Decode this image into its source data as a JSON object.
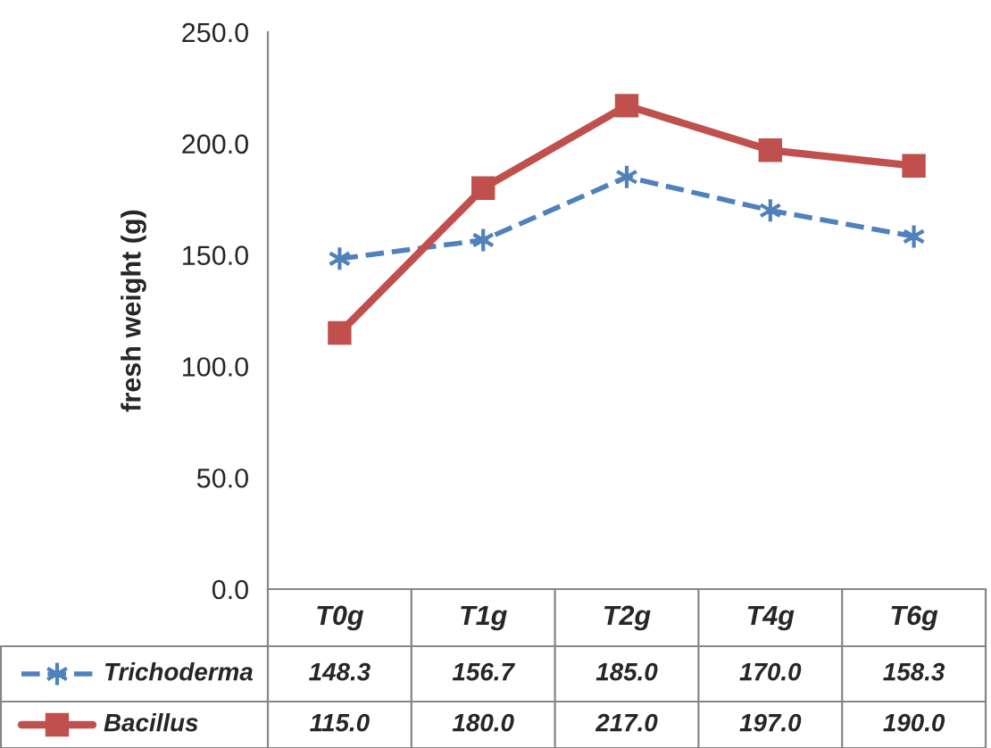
{
  "chart_data": {
    "type": "line",
    "ylabel": "fresh weight (g)",
    "categories": [
      "T0g",
      "T1g",
      "T2g",
      "T4g",
      "T6g"
    ],
    "series": [
      {
        "name": "Trichoderma",
        "color": "#4f81bd",
        "line_style": "dashed",
        "marker": "cross",
        "values": [
          148.3,
          156.7,
          185.0,
          170.0,
          158.3
        ],
        "value_labels": [
          "148.3",
          "156.7",
          "185.0",
          "170.0",
          "158.3"
        ]
      },
      {
        "name": "Bacillus",
        "color": "#c0504d",
        "line_style": "solid",
        "marker": "square",
        "values": [
          115.0,
          180.0,
          217.0,
          197.0,
          190.0
        ],
        "value_labels": [
          "115.0",
          "180.0",
          "217.0",
          "197.0",
          "190.0"
        ]
      }
    ],
    "ylim": [
      0,
      250
    ],
    "yticks": [
      {
        "value": 0,
        "label": "0.0"
      },
      {
        "value": 50,
        "label": "50.0"
      },
      {
        "value": 100,
        "label": "100.0"
      },
      {
        "value": 150,
        "label": "150.0"
      },
      {
        "value": 200,
        "label": "200.0"
      },
      {
        "value": 250,
        "label": "250.0"
      }
    ],
    "grid": false,
    "legend": "bottom"
  }
}
